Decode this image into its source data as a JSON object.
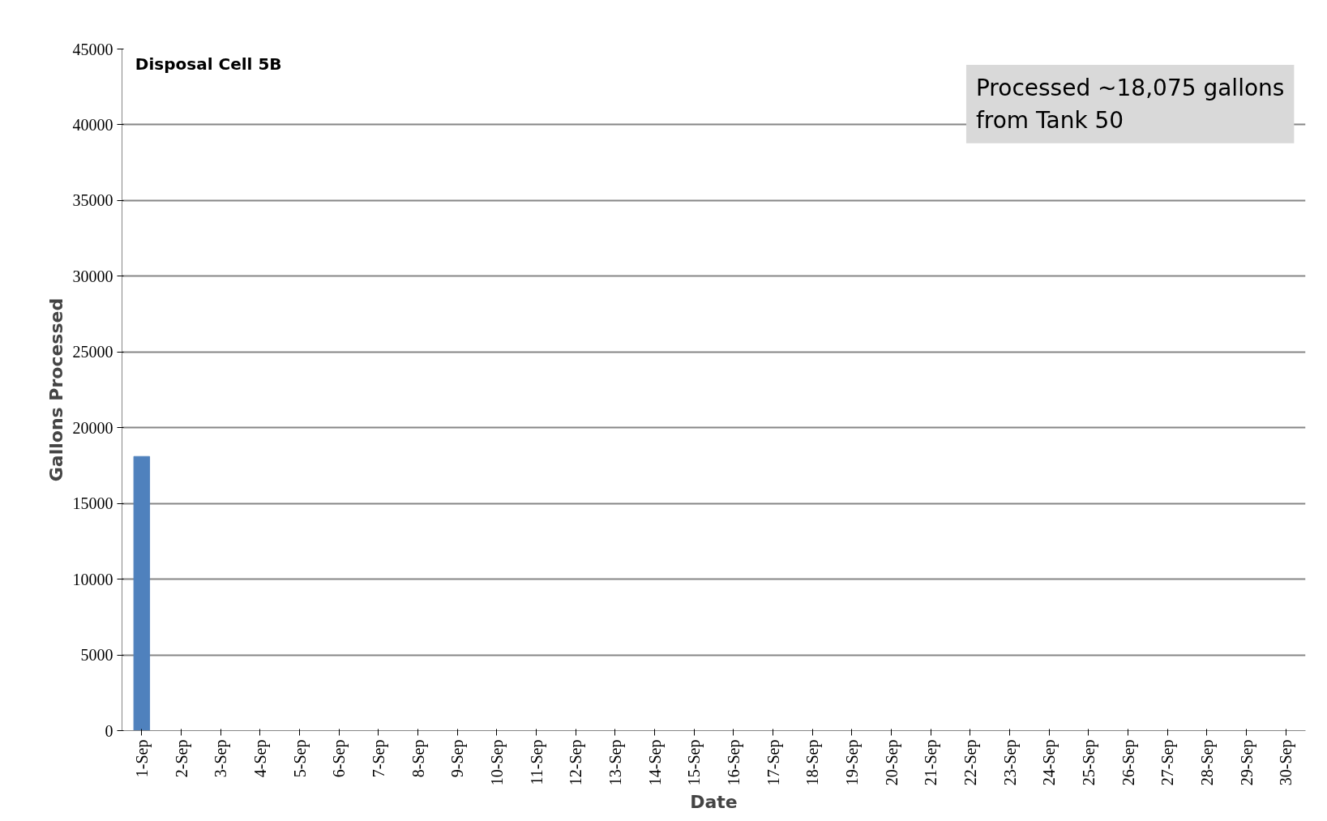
{
  "chart_data": {
    "type": "bar",
    "categories": [
      "1-Sep",
      "2-Sep",
      "3-Sep",
      "4-Sep",
      "5-Sep",
      "6-Sep",
      "7-Sep",
      "8-Sep",
      "9-Sep",
      "10-Sep",
      "11-Sep",
      "12-Sep",
      "13-Sep",
      "14-Sep",
      "15-Sep",
      "16-Sep",
      "17-Sep",
      "18-Sep",
      "19-Sep",
      "20-Sep",
      "21-Sep",
      "22-Sep",
      "23-Sep",
      "24-Sep",
      "25-Sep",
      "26-Sep",
      "27-Sep",
      "28-Sep",
      "29-Sep",
      "30-Sep"
    ],
    "values": [
      18100,
      null,
      null,
      null,
      null,
      null,
      null,
      null,
      null,
      null,
      null,
      null,
      null,
      null,
      null,
      null,
      null,
      null,
      null,
      null,
      null,
      null,
      null,
      null,
      null,
      null,
      null,
      null,
      null,
      null
    ],
    "color": "#4f81bd",
    "xlabel": "Date",
    "ylabel": "Gallons Processed",
    "ylim": [
      0,
      45000
    ],
    "yticks": [
      0,
      5000,
      10000,
      15000,
      20000,
      25000,
      30000,
      35000,
      40000,
      45000
    ],
    "grid": "y",
    "annotations": [
      "Disposal Cell 5B",
      "Processed ~18,075 gallons\nfrom Tank 50"
    ]
  }
}
